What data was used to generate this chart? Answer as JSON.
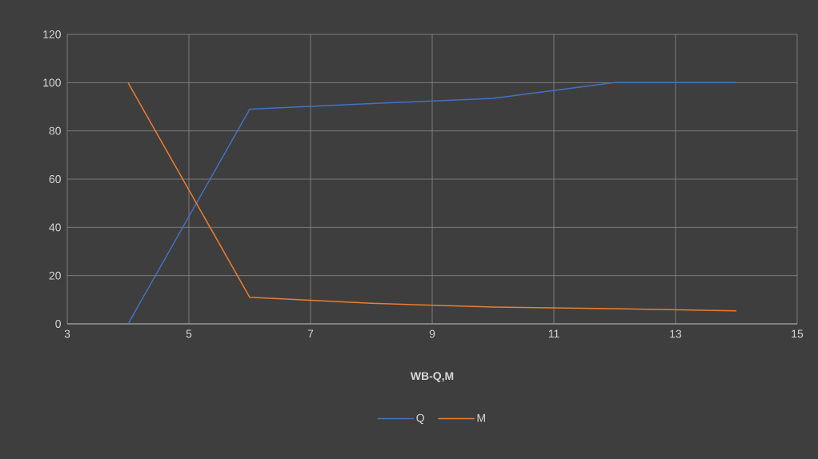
{
  "chart_data": {
    "type": "line",
    "xlabel": "WB-Q,M",
    "x": [
      4,
      6,
      8,
      10,
      12,
      14
    ],
    "series": [
      {
        "name": "Q",
        "color": "#4472c4",
        "values": [
          0,
          89,
          91.3,
          93.5,
          100,
          100
        ]
      },
      {
        "name": "M",
        "color": "#ed7d31",
        "values": [
          100,
          11,
          8.5,
          7,
          6.3,
          5.4
        ]
      }
    ],
    "xlim": [
      3,
      15
    ],
    "xticks": [
      3,
      5,
      7,
      9,
      11,
      13,
      15
    ],
    "ylim": [
      0,
      120
    ],
    "yticks": [
      0,
      20,
      40,
      60,
      80,
      100,
      120
    ],
    "grid": true,
    "legend": "bottom",
    "marker": "none",
    "line_style": "solid"
  }
}
